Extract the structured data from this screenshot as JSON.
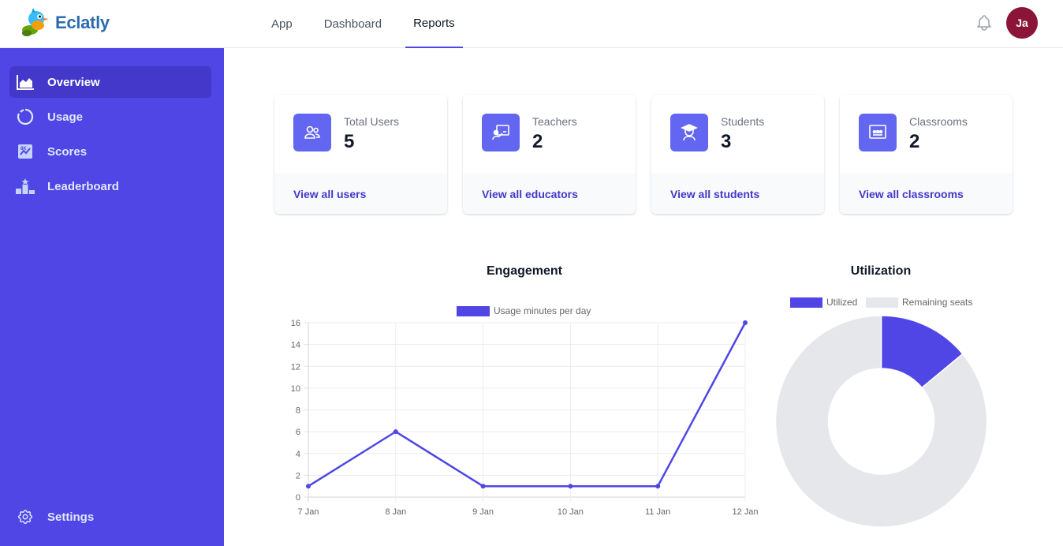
{
  "brand": {
    "name": "Eclatly"
  },
  "topnav": {
    "tabs": [
      {
        "label": "App",
        "active": false
      },
      {
        "label": "Dashboard",
        "active": false
      },
      {
        "label": "Reports",
        "active": true
      }
    ]
  },
  "user": {
    "initials": "Ja",
    "avatar_color": "#8b1538"
  },
  "sidebar": {
    "items": [
      {
        "label": "Overview",
        "icon": "area-chart-icon",
        "active": true
      },
      {
        "label": "Usage",
        "icon": "donut-icon",
        "active": false
      },
      {
        "label": "Scores",
        "icon": "scores-icon",
        "active": false
      },
      {
        "label": "Leaderboard",
        "icon": "podium-icon",
        "active": false
      }
    ],
    "settings_label": "Settings"
  },
  "stats": [
    {
      "label": "Total Users",
      "value": "5",
      "link": "View all users",
      "icon": "users-icon"
    },
    {
      "label": "Teachers",
      "value": "2",
      "link": "View all educators",
      "icon": "teacher-icon"
    },
    {
      "label": "Students",
      "value": "3",
      "link": "View all students",
      "icon": "student-icon"
    },
    {
      "label": "Classrooms",
      "value": "2",
      "link": "View all classrooms",
      "icon": "classroom-icon"
    }
  ],
  "colors": {
    "accent": "#4f46e5",
    "icon_bg": "#6366f1",
    "link": "#4338ca",
    "remaining": "#e5e7eb"
  },
  "chart_data": [
    {
      "type": "line",
      "title": "Engagement",
      "categories": [
        "7 Jan",
        "8 Jan",
        "9 Jan",
        "10 Jan",
        "11 Jan",
        "12 Jan"
      ],
      "series": [
        {
          "name": "Usage minutes per day",
          "values": [
            1,
            6,
            1,
            1,
            1,
            16
          ]
        }
      ],
      "ylim": [
        0,
        16
      ],
      "yticks": [
        0,
        2,
        4,
        6,
        8,
        10,
        12,
        14,
        16
      ],
      "grid": true,
      "legend": "top"
    },
    {
      "type": "pie",
      "title": "Utilization",
      "labels": [
        "Utilized",
        "Remaining seats"
      ],
      "values": [
        14,
        86
      ],
      "legend": "top"
    }
  ]
}
